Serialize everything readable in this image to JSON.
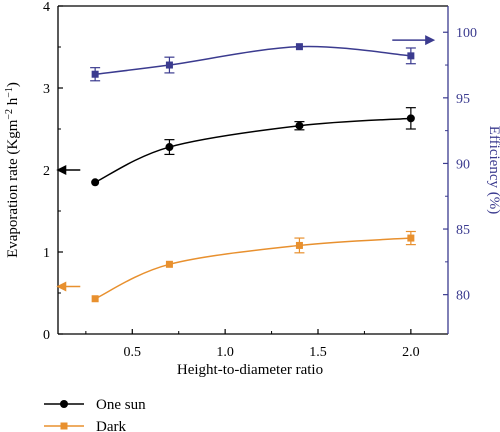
{
  "chart_data": {
    "type": "line",
    "xlabel": "Height-to-diameter ratio",
    "ylabel_left": "Evaporation rate (Kgm",
    "ylabel_left_sup": "−2",
    "ylabel_left_mid": " h",
    "ylabel_left_sup2": "−1",
    "ylabel_left_end": ")",
    "ylabel_right": "Efficiency (%)",
    "xlim": [
      0.1,
      2.2
    ],
    "ylim_left": [
      0,
      4
    ],
    "ylim_right": [
      77,
      102
    ],
    "x_ticks": [
      "0.5",
      "1.0",
      "1.5",
      "2.0"
    ],
    "x_tick_values": [
      0.5,
      1.0,
      1.5,
      2.0
    ],
    "y_left_ticks": [
      "0",
      "1",
      "2",
      "3",
      "4"
    ],
    "y_left_tick_values": [
      0,
      1,
      2,
      3,
      4
    ],
    "y_right_ticks": [
      "80",
      "85",
      "90",
      "95",
      "100"
    ],
    "y_right_tick_values": [
      80,
      85,
      90,
      95,
      100
    ],
    "x": [
      0.3,
      0.7,
      1.4,
      2.0
    ],
    "series": [
      {
        "name": "One sun",
        "axis": "left",
        "color": "#000000",
        "marker": "circle",
        "values": [
          1.85,
          2.28,
          2.54,
          2.63
        ],
        "errors": [
          0,
          0.09,
          0.05,
          0.13
        ]
      },
      {
        "name": "Dark",
        "axis": "left",
        "color": "#E8902E",
        "marker": "square",
        "values": [
          0.43,
          0.85,
          1.08,
          1.17
        ],
        "errors": [
          0,
          0,
          0.09,
          0.08
        ]
      },
      {
        "name": "",
        "axis": "right",
        "color": "#3B3B8F",
        "marker": "square",
        "values": [
          96.8,
          97.5,
          98.9,
          98.2
        ],
        "errors": [
          0.5,
          0.6,
          0,
          0.6
        ]
      }
    ],
    "annotations": [
      {
        "text": "",
        "points_to": "left",
        "series": "One sun"
      },
      {
        "text": "",
        "points_to": "left",
        "series": "Dark"
      },
      {
        "text": "",
        "points_to": "right",
        "series": "Efficiency"
      }
    ],
    "legend": "bottom-left",
    "grid": false
  }
}
